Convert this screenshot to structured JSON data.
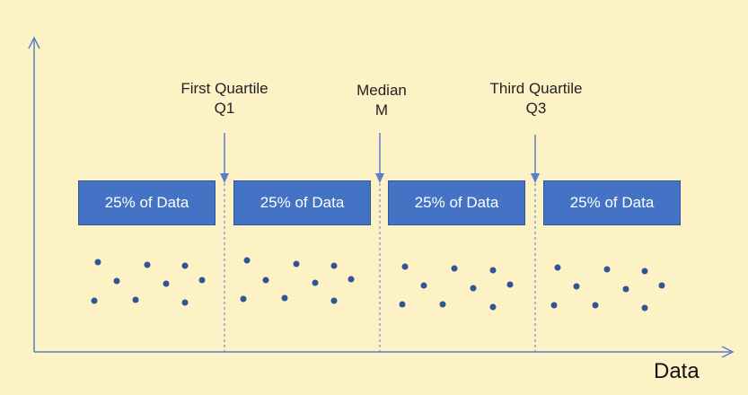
{
  "axis": {
    "x_label": "Data"
  },
  "markers": [
    {
      "id": "q1",
      "line1": "First Quartile",
      "line2": "Q1"
    },
    {
      "id": "median",
      "line1": "Median",
      "line2": "M"
    },
    {
      "id": "q3",
      "line1": "Third Quartile",
      "line2": "Q3"
    }
  ],
  "segments": [
    {
      "label": "25% of Data"
    },
    {
      "label": "25% of Data"
    },
    {
      "label": "25% of Data"
    },
    {
      "label": "25% of Data"
    }
  ],
  "colors": {
    "background": "#fdf1c6",
    "box": "#4472c4",
    "dot": "#2f5597",
    "axis": "#5b7fc7"
  }
}
